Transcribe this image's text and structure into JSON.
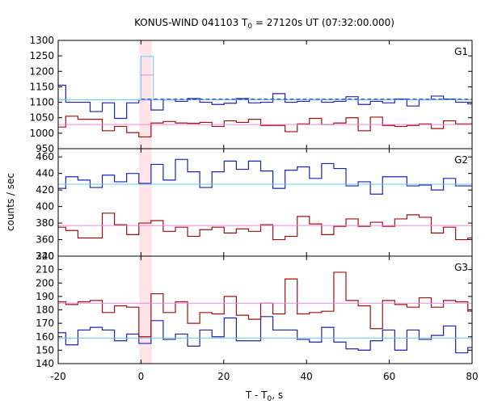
{
  "chart_data": {
    "type": "line",
    "title_main": "KONUS-WIND 041103 T",
    "title_sub": "0",
    "title_rest": " = 27120s UT (07:32:00.000)",
    "xlabel_main": "T - T",
    "xlabel_sub": "0",
    "xlabel_rest": ", s",
    "ylabel": "counts / sec",
    "xlim": [
      -20,
      80
    ],
    "xticks": [
      -20,
      0,
      20,
      40,
      60,
      80
    ],
    "xtick_labels": [
      "-20",
      "0",
      "20",
      "40",
      "60",
      "80"
    ],
    "bin_edges": [
      -18.176,
      -15.232,
      -12.288,
      -9.344,
      -6.4,
      -3.456,
      -0.512,
      2.432,
      5.376,
      8.32,
      11.264,
      14.208,
      17.152,
      20.096,
      23.04,
      25.984,
      28.928,
      31.872,
      34.816,
      37.76,
      40.704,
      43.648,
      46.592,
      49.536,
      52.48,
      55.424,
      58.368,
      61.312,
      64.256,
      67.2,
      70.144,
      73.088,
      76.032,
      78.976
    ],
    "highlight": {
      "x0": -0.4,
      "x1": 2.6,
      "color": "#ffe4e8"
    },
    "colors": {
      "blue": "#1a23b0",
      "red": "#9e1010",
      "bg_blue": "#66c8ee",
      "bg_pink": "#ee88dd"
    },
    "panels": [
      {
        "label": "G1",
        "ylim": [
          950,
          1300
        ],
        "yticks": [
          950,
          1000,
          1050,
          1100,
          1150,
          1200,
          1250,
          1300
        ],
        "ytick_labels": [
          "950",
          "1000",
          "1050",
          "1100",
          "1150",
          "1200",
          "1250",
          "1300"
        ],
        "series": [
          {
            "color": "blue",
            "start": 1155,
            "values": [
              1100,
              1100,
              1070,
              1098,
              1048,
              1098,
              1108,
              1075,
              1108,
              1103,
              1112,
              1100,
              1093,
              1097,
              1112,
              1098,
              1100,
              1128,
              1100,
              1103,
              1108,
              1100,
              1103,
              1118,
              1093,
              1103,
              1098,
              1110,
              1088,
              1108,
              1120,
              1110,
              1100
            ],
            "end": 1095
          },
          {
            "color": "red",
            "start": 1020,
            "values": [
              1055,
              1045,
              1045,
              1008,
              1022,
              1002,
              988,
              1033,
              1038,
              1033,
              1032,
              1035,
              1022,
              1040,
              1035,
              1045,
              1025,
              1025,
              1005,
              1030,
              1048,
              1028,
              1033,
              1050,
              1008,
              1052,
              1025,
              1022,
              1025,
              1030,
              1015,
              1040,
              1030
            ],
            "end": 1030
          },
          {
            "color": "bg_blue",
            "type": "hline",
            "y": 1108
          },
          {
            "color": "bg_pink",
            "type": "hline",
            "y": 1028
          },
          {
            "color": "blue",
            "type": "dashed",
            "x0": 0,
            "x1": 80,
            "y": 1110
          },
          {
            "color": "bg_blue",
            "type": "box",
            "x0": 0,
            "x1": 3,
            "y": 1248,
            "base": 1108
          },
          {
            "color": "bg_pink",
            "type": "segment",
            "x0": 0,
            "x1": 3,
            "y": 1188
          }
        ]
      },
      {
        "label": "G2",
        "ylim": [
          340,
          470
        ],
        "yticks": [
          340,
          360,
          380,
          400,
          420,
          440,
          460
        ],
        "ytick_labels": [
          "340",
          "360",
          "380",
          "400",
          "420",
          "440",
          "460"
        ],
        "series": [
          {
            "color": "blue",
            "start": 422,
            "values": [
              436,
              432,
              423,
              438,
              430,
              440,
              428,
              451,
              432,
              457,
              442,
              423,
              442,
              455,
              445,
              455,
              443,
              422,
              444,
              448,
              434,
              452,
              446,
              425,
              430,
              415,
              436,
              436,
              425,
              426,
              420,
              434,
              425
            ],
            "end": 425
          },
          {
            "color": "red",
            "start": 375,
            "values": [
              371,
              362,
              362,
              392,
              378,
              366,
              380,
              383,
              370,
              375,
              364,
              372,
              375,
              368,
              373,
              370,
              378,
              360,
              364,
              388,
              379,
              366,
              376,
              385,
              376,
              381,
              376,
              385,
              390,
              387,
              368,
              375,
              360
            ],
            "end": 362
          },
          {
            "color": "bg_blue",
            "type": "hline",
            "y": 427
          },
          {
            "color": "bg_pink",
            "type": "hline",
            "y": 377
          }
        ]
      },
      {
        "label": "G3",
        "ylim": [
          140,
          220
        ],
        "yticks": [
          140,
          150,
          160,
          170,
          180,
          190,
          200,
          210,
          220
        ],
        "ytick_labels": [
          "140",
          "150",
          "160",
          "170",
          "180",
          "190",
          "200",
          "210",
          "220"
        ],
        "series": [
          {
            "color": "blue",
            "start": 163,
            "values": [
              154,
              165,
              167,
              165,
              157,
              162,
              155,
              172,
              158,
              162,
              153,
              165,
              160,
              174,
              157,
              157,
              175,
              165,
              165,
              158,
              156,
              167,
              156,
              151,
              150,
              157,
              165,
              150,
              165,
              158,
              161,
              168,
              148
            ],
            "end": 152
          },
          {
            "color": "red",
            "start": 186,
            "values": [
              184,
              186,
              187,
              178,
              183,
              182,
              160,
              192,
              178,
              186,
              170,
              178,
              177,
              190,
              176,
              173,
              185,
              177,
              203,
              177,
              178,
              179,
              208,
              187,
              183,
              166,
              187,
              184,
              182,
              189,
              182,
              187,
              186
            ],
            "end": 179
          },
          {
            "color": "bg_blue",
            "type": "hline",
            "y": 159
          },
          {
            "color": "bg_pink",
            "type": "hline",
            "y": 185
          }
        ]
      }
    ]
  }
}
